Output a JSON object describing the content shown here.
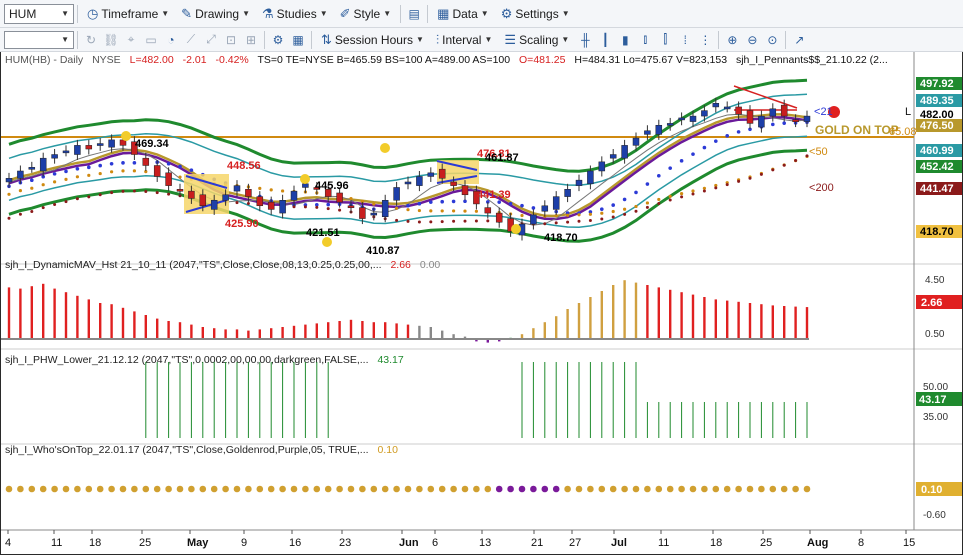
{
  "toolbar1": {
    "symbol": "HUM",
    "timeframe": "Timeframe",
    "drawing": "Drawing",
    "studies": "Studies",
    "style": "Style",
    "data": "Data",
    "settings": "Settings"
  },
  "toolbar2": {
    "session_hours": "Session Hours",
    "interval": "Interval",
    "scaling": "Scaling"
  },
  "header": {
    "symbol": "HUM(HB) - Daily",
    "exchange": "NYSE",
    "last": "L=482.00",
    "change": "-2.01",
    "pct": "-0.42%",
    "rest": "TS=0  TE=NYSE  B=465.59  BS=100  A=489.00  AS=100",
    "open": "O=481.25",
    "hlv": "H=484.31  Lo=475.67  V=823,153",
    "study": "sjh_I_Pennants$$_21.10.22 (2..."
  },
  "price_labels": [
    {
      "text": "469.34",
      "color": "#111"
    },
    {
      "text": "448.56",
      "color": "#d62020"
    },
    {
      "text": "445.96",
      "color": "#111"
    },
    {
      "text": "425.90",
      "color": "#d62020"
    },
    {
      "text": "421.51",
      "color": "#111"
    },
    {
      "text": "410.87",
      "color": "#111"
    },
    {
      "text": "476.81",
      "color": "#d62020"
    },
    {
      "text": "461.87",
      "color": "#111"
    },
    {
      "text": "441.39",
      "color": "#d62020"
    },
    {
      "text": "418.70",
      "color": "#111"
    }
  ],
  "annotations": {
    "gold_on_top": "GOLD ON TOP",
    "ma21": "21",
    "ma50": "50",
    "ma200": "200",
    "gold_val": "65.08",
    "edge_l": "L"
  },
  "axis_main": [
    {
      "text": "497.92",
      "bg": "#1f8a2e",
      "fg": "#ffffff"
    },
    {
      "text": "489.35",
      "bg": "#2a9aa4",
      "fg": "#ffffff"
    },
    {
      "text": "482.00",
      "bg": "#ffffff",
      "fg": "#000000"
    },
    {
      "text": "476.50",
      "bg": "#b8982c",
      "fg": "#ffffff"
    },
    {
      "text": "460.99",
      "bg": "#2a9aa4",
      "fg": "#ffffff"
    },
    {
      "text": "452.42",
      "bg": "#1f8a2e",
      "fg": "#ffffff"
    },
    {
      "text": "441.47",
      "bg": "#8b1a1a",
      "fg": "#ffffff"
    },
    {
      "text": "418.70",
      "bg": "#f0c040",
      "fg": "#000000"
    }
  ],
  "panes": {
    "dynmav_title": "sjh_I_DynamicMAV_Hst 21_10_11 (2047,\"TS\",Close,Close,08,13,0.25,0.25,00,...",
    "dynmav_value": "2.66",
    "dynmav_value2": "0.00",
    "dynmav_axis": [
      "4.50",
      "0.50"
    ],
    "dynmav_badge": "2.66",
    "phw_title": "sjh_I_PHW_Lower_21.12.12 (2047,\"TS\",0.0002,00,00,00,darkgreen,FALSE,...",
    "phw_value": "43.17",
    "phw_axis": [
      "50.00",
      "35.00"
    ],
    "phw_badge": "43.17",
    "who_title": "sjh_I_Who'sOnTop_22.01.17 (2047,\"TS\",Close,Goldenrod,Purple,05, TRUE,...",
    "who_value": "0.10",
    "who_axis": [
      "-0.60"
    ],
    "who_badge": "0.10"
  },
  "date_axis": [
    {
      "text": "4",
      "bold": false
    },
    {
      "text": "11",
      "bold": false
    },
    {
      "text": "18",
      "bold": false
    },
    {
      "text": "25",
      "bold": false
    },
    {
      "text": "May",
      "bold": true
    },
    {
      "text": "9",
      "bold": false
    },
    {
      "text": "16",
      "bold": false
    },
    {
      "text": "23",
      "bold": false
    },
    {
      "text": "Jun",
      "bold": true
    },
    {
      "text": "6",
      "bold": false
    },
    {
      "text": "13",
      "bold": false
    },
    {
      "text": "21",
      "bold": false
    },
    {
      "text": "27",
      "bold": false
    },
    {
      "text": "Jul",
      "bold": true
    },
    {
      "text": "11",
      "bold": false
    },
    {
      "text": "18",
      "bold": false
    },
    {
      "text": "25",
      "bold": false
    },
    {
      "text": "Aug",
      "bold": true
    },
    {
      "text": "8",
      "bold": false
    },
    {
      "text": "15",
      "bold": false
    }
  ],
  "chart_data": {
    "type": "candlestick",
    "price_range": [
      405,
      505
    ],
    "closes": [
      448,
      452,
      454,
      459,
      461,
      463,
      466,
      464,
      467,
      469,
      466,
      461,
      455,
      449,
      444,
      441,
      437,
      433,
      436,
      439,
      444,
      438,
      433,
      431,
      436,
      441,
      445,
      442,
      438,
      435,
      432,
      426,
      429,
      436,
      443,
      446,
      449,
      451,
      448,
      444,
      439,
      434,
      429,
      424,
      419,
      423,
      428,
      433,
      438,
      442,
      447,
      452,
      457,
      461,
      466,
      470,
      474,
      477,
      478,
      481,
      482,
      485,
      489,
      487,
      483,
      478,
      482,
      486,
      482,
      479,
      482
    ],
    "hist_values": [
      4.3,
      4.2,
      4.4,
      4.6,
      4.2,
      3.9,
      3.6,
      3.3,
      3.0,
      2.9,
      2.6,
      2.3,
      2.0,
      1.7,
      1.5,
      1.4,
      1.2,
      1.0,
      0.9,
      0.8,
      0.8,
      0.7,
      0.8,
      0.9,
      1.0,
      1.1,
      1.2,
      1.3,
      1.4,
      1.5,
      1.6,
      1.5,
      1.4,
      1.4,
      1.3,
      1.2,
      1.1,
      1.0,
      0.7,
      0.4,
      0.2,
      -0.2,
      -0.3,
      -0.2,
      0.1,
      0.4,
      0.9,
      1.4,
      1.9,
      2.5,
      3.0,
      3.5,
      4.0,
      4.5,
      4.9,
      4.7,
      4.5,
      4.3,
      4.1,
      3.9,
      3.7,
      3.5,
      3.3,
      3.2,
      3.1,
      3.0,
      2.9,
      2.8,
      2.75,
      2.7,
      2.66
    ],
    "phw_range": [
      1,
      71
    ],
    "phw_on": [
      [
        12,
        28
      ],
      [
        45,
        46
      ],
      [
        47,
        71
      ]
    ],
    "who_purple": [
      43,
      48
    ]
  }
}
